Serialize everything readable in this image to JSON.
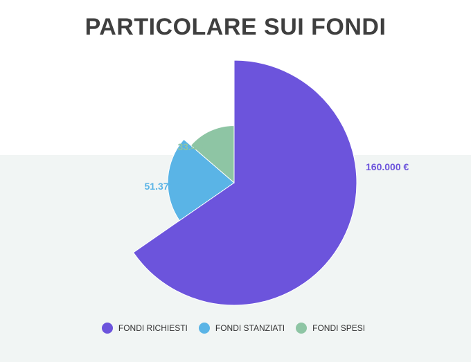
{
  "chart_data": {
    "type": "pie",
    "variant": "variable-radius",
    "title": "PARTICOLARE SUI FONDI",
    "series": [
      {
        "name": "FONDI RICHIESTI",
        "value": 160000,
        "label": "160.000 €",
        "color": "#6c54dc"
      },
      {
        "name": "FONDI STANZIATI",
        "value": 51370,
        "label": "51.370 €",
        "color": "#5ab4e6"
      },
      {
        "name": "FONDI SPESI",
        "value": 33448,
        "label": "33.448 €",
        "color": "#8ec5a4"
      }
    ],
    "legend_position": "bottom"
  }
}
